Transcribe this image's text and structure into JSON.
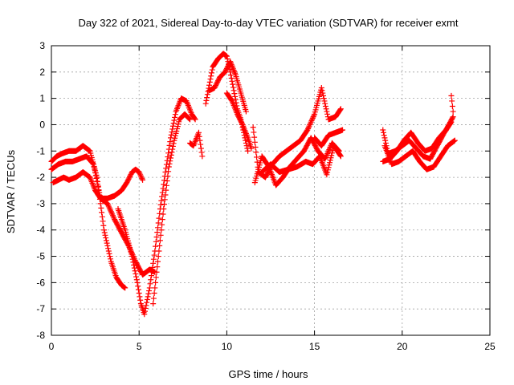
{
  "chart_data": {
    "type": "scatter",
    "title": "Day 322 of 2021, Sidereal Day-to-day VTEC variation (SDTVAR) for receiver exmt",
    "xlabel": "GPS time / hours",
    "ylabel": "SDTVAR / TECUs",
    "xlim": [
      0,
      25
    ],
    "ylim": [
      -8,
      3
    ],
    "xticks": [
      0,
      5,
      10,
      15,
      20,
      25
    ],
    "yticks": [
      -8,
      -7,
      -6,
      -5,
      -4,
      -3,
      -2,
      -1,
      0,
      1,
      2,
      3
    ],
    "grid": true,
    "legend": "none",
    "marker": "plus",
    "color": "#ff0000",
    "series": [
      {
        "x": [
          0,
          0.3,
          0.6,
          1.0,
          1.4,
          1.8,
          2.2,
          2.6,
          3.0,
          3.4,
          3.7,
          4.0,
          4.2
        ],
        "y": [
          -1.4,
          -1.2,
          -1.1,
          -1.0,
          -1.0,
          -0.8,
          -1.0,
          -2.0,
          -4.0,
          -5.2,
          -5.8,
          -6.1,
          -6.2
        ]
      },
      {
        "x": [
          0,
          0.4,
          0.8,
          1.2,
          1.6,
          2.0,
          2.4,
          2.8,
          3.2,
          3.6,
          4.0,
          4.4,
          4.8,
          5.2,
          5.6,
          5.9
        ],
        "y": [
          -1.7,
          -1.5,
          -1.4,
          -1.4,
          -1.3,
          -1.2,
          -1.5,
          -2.8,
          -3.0,
          -3.6,
          -4.1,
          -4.6,
          -5.2,
          -5.7,
          -5.5,
          -5.6
        ]
      },
      {
        "x": [
          0.1,
          0.4,
          0.7,
          1.0,
          1.4,
          1.8,
          2.2,
          2.5,
          2.8,
          3.2,
          3.6,
          4.0,
          4.3,
          4.6,
          4.8,
          5.0,
          5.2
        ],
        "y": [
          -2.2,
          -2.1,
          -2.0,
          -2.1,
          -2.0,
          -1.8,
          -2.0,
          -2.5,
          -2.8,
          -2.8,
          -2.7,
          -2.5,
          -2.2,
          -1.8,
          -1.7,
          -1.8,
          -2.1
        ]
      },
      {
        "x": [
          3.8,
          4.2,
          4.6,
          4.9,
          5.1,
          5.3,
          5.6,
          5.9,
          6.2,
          6.5,
          6.8,
          7.1,
          7.4,
          7.7,
          8.0,
          8.2
        ],
        "y": [
          -3.2,
          -4.0,
          -5.0,
          -6.0,
          -6.8,
          -7.2,
          -6.2,
          -4.8,
          -3.2,
          -1.8,
          -0.5,
          0.5,
          1.0,
          0.9,
          0.4,
          0.2
        ]
      },
      {
        "x": [
          5.8,
          6.1,
          6.4,
          6.7,
          7.0,
          7.3,
          7.6,
          7.9
        ],
        "y": [
          -6.8,
          -5.0,
          -3.2,
          -1.6,
          -0.6,
          0.2,
          0.4,
          0.2
        ]
      },
      {
        "x": [
          7.9,
          8.1,
          8.4,
          8.6
        ],
        "y": [
          -0.7,
          -0.8,
          -0.3,
          -1.2
        ]
      },
      {
        "x": [
          8.8,
          9.0,
          9.2,
          9.5,
          9.8,
          10.0,
          10.2,
          10.4,
          10.6,
          10.8,
          11.0,
          11.2
        ],
        "y": [
          0.8,
          1.5,
          2.2,
          2.5,
          2.7,
          2.6,
          2.0,
          1.3,
          0.6,
          0.2,
          -0.4,
          -1.0
        ]
      },
      {
        "x": [
          9.0,
          9.3,
          9.6,
          9.9,
          10.2,
          10.5,
          10.8,
          11.1
        ],
        "y": [
          1.3,
          1.4,
          1.8,
          2.0,
          2.4,
          1.9,
          1.2,
          0.5
        ]
      },
      {
        "x": [
          10.0,
          10.3,
          10.6,
          10.9,
          11.2,
          11.4
        ],
        "y": [
          1.2,
          0.9,
          0.4,
          0.0,
          -0.5,
          -0.9
        ]
      },
      {
        "x": [
          11.5,
          11.8,
          12.2,
          12.6,
          13.0,
          13.4,
          13.8,
          14.2,
          14.6,
          15.0,
          15.4,
          15.8,
          16.2,
          16.5
        ],
        "y": [
          -0.1,
          -1.8,
          -2.0,
          -1.5,
          -1.2,
          -1.0,
          -0.8,
          -0.6,
          -0.2,
          0.4,
          1.4,
          0.2,
          0.3,
          0.6
        ]
      },
      {
        "x": [
          11.6,
          12.0,
          12.4,
          12.8,
          13.2,
          13.6,
          14.0,
          14.4,
          14.8,
          15.2,
          15.6,
          16.0,
          16.4
        ],
        "y": [
          -2.2,
          -1.2,
          -1.6,
          -2.3,
          -2.0,
          -1.6,
          -1.3,
          -1.0,
          -0.5,
          -1.0,
          -1.3,
          -0.7,
          -1.0
        ]
      },
      {
        "x": [
          12.0,
          12.5,
          13.0,
          13.5,
          14.0,
          14.5,
          14.9,
          15.3,
          15.7,
          16.1,
          16.5
        ],
        "y": [
          -1.8,
          -1.5,
          -1.8,
          -1.7,
          -1.6,
          -1.4,
          -1.5,
          -1.2,
          -1.9,
          -0.8,
          -1.2
        ]
      },
      {
        "x": [
          15.0,
          15.4,
          15.8,
          16.2,
          16.6
        ],
        "y": [
          -0.5,
          -0.8,
          -0.4,
          -0.3,
          -0.2
        ]
      },
      {
        "x": [
          18.9,
          19.2,
          19.6,
          20.0,
          20.4,
          20.8,
          21.2,
          21.6,
          22.0,
          22.4,
          22.8
        ],
        "y": [
          -0.2,
          -1.1,
          -1.0,
          -0.8,
          -0.6,
          -0.9,
          -1.2,
          -1.3,
          -0.8,
          -0.3,
          0.1
        ]
      },
      {
        "x": [
          18.9,
          19.3,
          19.7,
          20.1,
          20.5,
          20.9,
          21.3,
          21.7,
          22.1,
          22.5,
          22.9
        ],
        "y": [
          -1.4,
          -1.3,
          -1.0,
          -0.6,
          -0.3,
          -0.7,
          -1.0,
          -0.9,
          -0.5,
          -0.2,
          0.3
        ]
      },
      {
        "x": [
          19.0,
          19.4,
          19.8,
          20.2,
          20.6,
          21.0,
          21.4,
          21.8,
          22.2,
          22.6,
          23.0
        ],
        "y": [
          -0.8,
          -1.5,
          -1.4,
          -1.2,
          -1.0,
          -1.4,
          -1.7,
          -1.6,
          -1.2,
          -0.8,
          -0.6
        ]
      },
      {
        "x": [
          22.8,
          22.9
        ],
        "y": [
          1.1,
          0.5
        ]
      }
    ]
  }
}
